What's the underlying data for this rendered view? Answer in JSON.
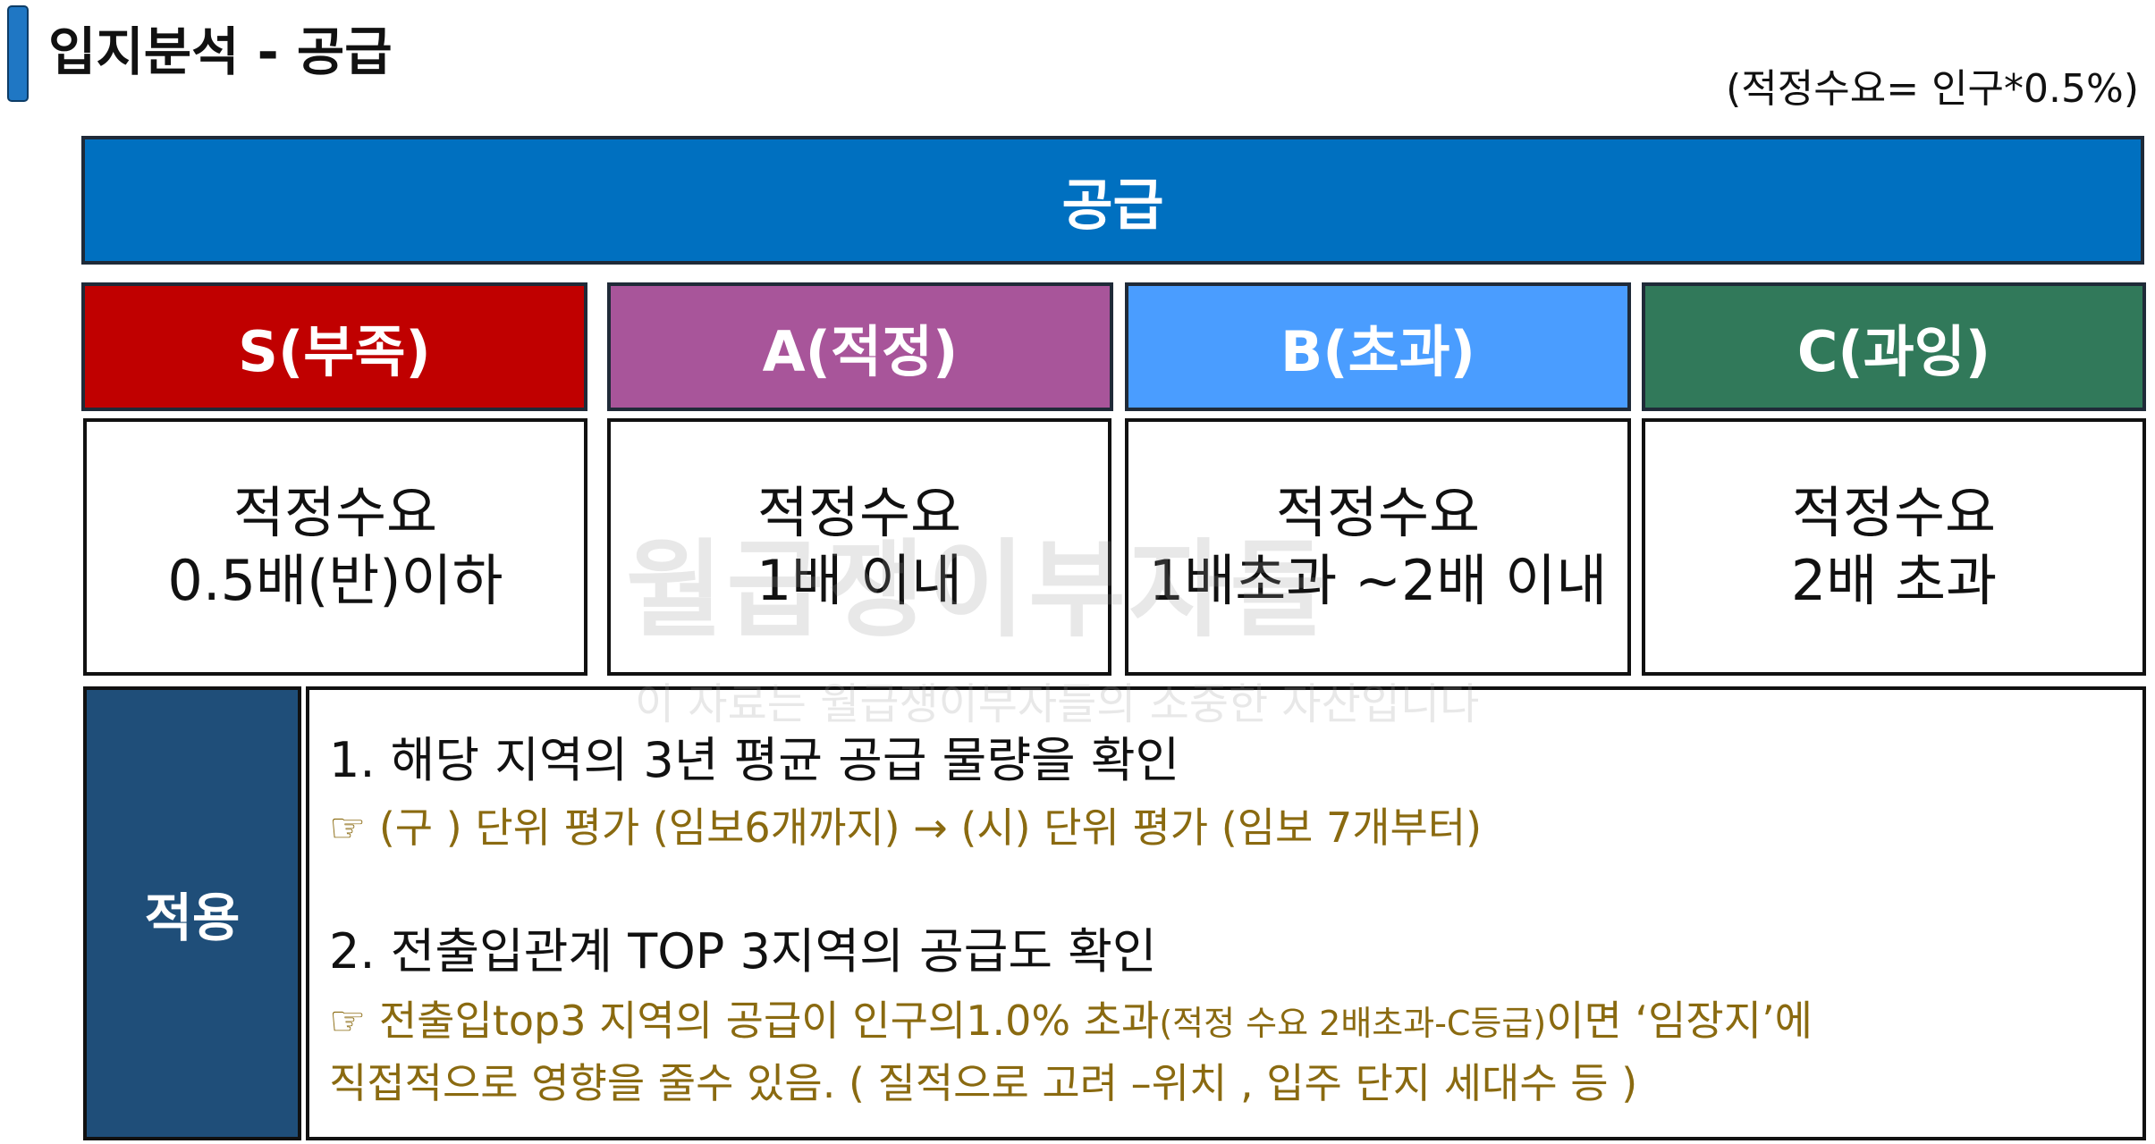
{
  "page": {
    "title": "입지분석 - 공급",
    "formula_note": "(적정수요= 인구*0.5%)"
  },
  "supply_header": "공급",
  "grades": [
    {
      "label": "S(부족)",
      "color": "#c00000",
      "criteria_line1": "적정수요",
      "criteria_line2": "0.5배(반)이하"
    },
    {
      "label": "A(적정)",
      "color": "#a8559a",
      "criteria_line1": "적정수요",
      "criteria_line2": "1배 이내"
    },
    {
      "label": "B(초과)",
      "color": "#4a9dff",
      "criteria_line1": "적정수요",
      "criteria_line2": "1배초과 ~2배 이내"
    },
    {
      "label": "C(과잉)",
      "color": "#31795a",
      "criteria_line1": "적정수요",
      "criteria_line2": "2배 초과"
    }
  ],
  "apply": {
    "label": "적용",
    "item1_title": "1. 해당 지역의  3년 평균 공급  물량을 확인",
    "item1_note": "☞ (구 ) 단위 평가 (임보6개까지)  → (시) 단위 평가  (임보 7개부터)",
    "item2_title": "2. 전출입관계 TOP 3지역의 공급도 확인",
    "item2_note_a": "☞ 전출입top3 지역의 공급이 인구의1.0% 초과",
    "item2_note_small": "(적정 수요  2배초과-C등급)",
    "item2_note_b": "이면 ‘임장지’에",
    "item2_note_line2": "직접적으로  영향을 줄수 있음. ( 질적으로 고려 –위치 , 입주 단지 세대수 등 )"
  },
  "watermark": {
    "main": "월급쟁이부자들",
    "sub": "이 자료는 월급쟁이부자들의 소중한 자산입니다"
  }
}
